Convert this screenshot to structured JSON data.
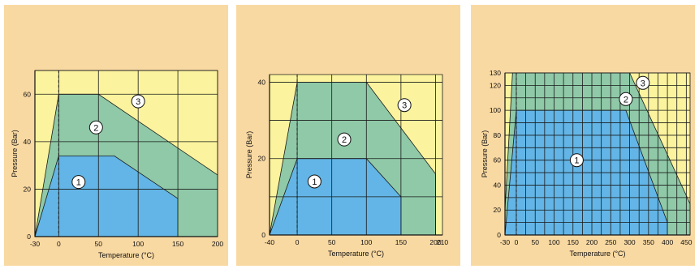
{
  "chart_data": [
    {
      "type": "area",
      "xlabel": "Temperature (°C)",
      "ylabel": "Pressure (Bar)",
      "xlim": [
        -30,
        200
      ],
      "ylim": [
        0,
        70
      ],
      "x_ticks": [
        -30,
        0,
        50,
        100,
        150,
        200
      ],
      "x_tick_labels": [
        "-30",
        "0",
        "50",
        "100",
        "150",
        "200"
      ],
      "y_ticks": [
        0,
        20,
        40,
        60
      ],
      "y_tick_labels": [
        "0",
        "20",
        "40",
        "60"
      ],
      "x_grid": [
        -30,
        0,
        50,
        100,
        150,
        200
      ],
      "y_grid": [
        0,
        20,
        40,
        60,
        70
      ],
      "dashed_x": 0,
      "regions": [
        {
          "label": "3",
          "color": "#fbf39d",
          "label_at": [
            100,
            57
          ],
          "points": [
            [
              -30,
              0
            ],
            [
              -30,
              70
            ],
            [
              200,
              70
            ],
            [
              200,
              0
            ]
          ]
        },
        {
          "label": "2",
          "color": "#8fc9a7",
          "label_at": [
            47,
            46
          ],
          "points": [
            [
              -30,
              0
            ],
            [
              0,
              60
            ],
            [
              50,
              60
            ],
            [
              200,
              26
            ],
            [
              200,
              0
            ]
          ]
        },
        {
          "label": "1",
          "color": "#62b5e6",
          "label_at": [
            25,
            23
          ],
          "points": [
            [
              -30,
              0
            ],
            [
              0,
              34
            ],
            [
              70,
              34
            ],
            [
              150,
              16
            ],
            [
              150,
              0
            ]
          ]
        }
      ]
    },
    {
      "type": "area",
      "xlabel": "Temperature (°C)",
      "ylabel": "Pressure (Bar)",
      "xlim": [
        -40,
        210
      ],
      "ylim": [
        0,
        42
      ],
      "x_ticks": [
        -40,
        0,
        50,
        100,
        150,
        200,
        210
      ],
      "x_tick_labels": [
        "-40",
        "0",
        "50",
        "100",
        "150",
        "200",
        "210"
      ],
      "y_ticks": [
        0,
        20,
        40
      ],
      "y_tick_labels": [
        "0",
        "20",
        "40"
      ],
      "x_grid": [
        -40,
        0,
        50,
        100,
        150,
        200
      ],
      "y_grid": [
        0,
        10,
        20,
        30,
        40
      ],
      "dashed_x": 0,
      "regions": [
        {
          "label": "3",
          "color": "#fbf39d",
          "label_at": [
            155,
            34
          ],
          "points": [
            [
              -40,
              0
            ],
            [
              -40,
              42
            ],
            [
              210,
              42
            ],
            [
              210,
              0
            ]
          ]
        },
        {
          "label": "2",
          "color": "#8fc9a7",
          "label_at": [
            68,
            25
          ],
          "points": [
            [
              -40,
              0
            ],
            [
              0,
              40
            ],
            [
              100,
              40
            ],
            [
              200,
              16
            ],
            [
              200,
              0
            ]
          ]
        },
        {
          "label": "1",
          "color": "#62b5e6",
          "label_at": [
            25,
            14
          ],
          "points": [
            [
              -40,
              0
            ],
            [
              0,
              20
            ],
            [
              100,
              20
            ],
            [
              150,
              10
            ],
            [
              150,
              0
            ]
          ]
        }
      ]
    },
    {
      "type": "area",
      "xlabel": "Temperature (°C)",
      "ylabel": "Pressure (Bar)",
      "xlim": [
        -30,
        460
      ],
      "ylim": [
        0,
        130
      ],
      "x_ticks": [
        -30,
        0,
        50,
        100,
        150,
        200,
        250,
        300,
        350,
        400,
        450
      ],
      "x_tick_labels": [
        "-30",
        "0",
        "50",
        "100",
        "150",
        "200",
        "250",
        "300",
        "350",
        "400",
        "450"
      ],
      "y_ticks": [
        0,
        20,
        40,
        60,
        80,
        100,
        120,
        130
      ],
      "y_tick_labels": [
        "0",
        "20",
        "40",
        "60",
        "80",
        "100",
        "120",
        "130"
      ],
      "x_grid": [
        -30,
        0,
        25,
        50,
        75,
        100,
        125,
        150,
        175,
        200,
        225,
        250,
        275,
        300,
        325,
        350,
        375,
        400,
        425,
        450
      ],
      "y_grid": [
        0,
        10,
        20,
        30,
        40,
        50,
        60,
        70,
        80,
        90,
        100,
        110,
        120,
        130
      ],
      "dashed_x": 0,
      "regions": [
        {
          "label": "3",
          "color": "#fbf39d",
          "label_at": [
            335,
            122
          ],
          "points": [
            [
              -30,
              0
            ],
            [
              -30,
              130
            ],
            [
              460,
              130
            ],
            [
              460,
              0
            ]
          ]
        },
        {
          "label": "2",
          "color": "#8fc9a7",
          "label_at": [
            290,
            109
          ],
          "points": [
            [
              -30,
              20
            ],
            [
              -10,
              130
            ],
            [
              300,
              130
            ],
            [
              460,
              25
            ],
            [
              460,
              0
            ],
            [
              -30,
              0
            ]
          ]
        },
        {
          "label": "1",
          "color": "#62b5e6",
          "label_at": [
            160,
            60
          ],
          "points": [
            [
              -30,
              0
            ],
            [
              0,
              100
            ],
            [
              290,
              100
            ],
            [
              400,
              10
            ],
            [
              400,
              0
            ]
          ]
        }
      ]
    }
  ]
}
